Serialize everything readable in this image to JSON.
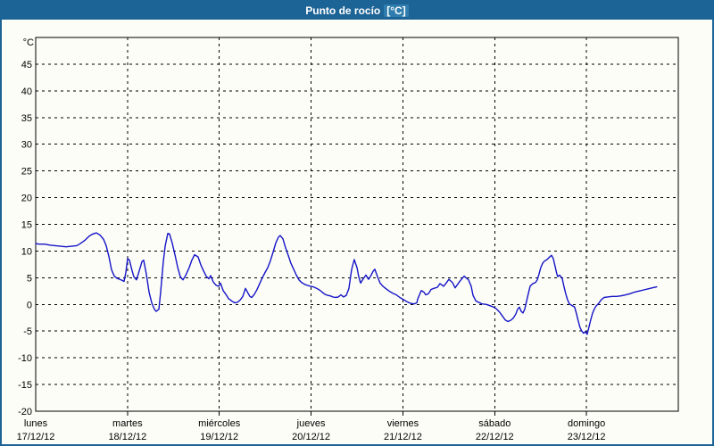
{
  "window": {
    "title_main": "Punto de rocío",
    "title_unit": "[°C]"
  },
  "colors": {
    "frame": "#1d6496",
    "title_text": "#ffffff",
    "title_unit_bg": "#2f7dae",
    "background": "#fdfdf7",
    "plot_border": "#000000",
    "grid": "#000000",
    "label": "#000000",
    "line": "#1414c8"
  },
  "chart_data": {
    "type": "line",
    "title": "Punto de rocío [°C]",
    "xlabel": "",
    "ylabel": "°C",
    "ylim": [
      -20,
      50
    ],
    "yticks": [
      45,
      40,
      35,
      30,
      25,
      20,
      15,
      10,
      5,
      0,
      -5,
      -10,
      -15,
      -20
    ],
    "x_range_days": [
      0,
      7
    ],
    "grid": true,
    "legend": "none",
    "x_days": [
      {
        "weekday": "lunes",
        "date": "17/12/12"
      },
      {
        "weekday": "martes",
        "date": "18/12/12"
      },
      {
        "weekday": "miércoles",
        "date": "19/12/12"
      },
      {
        "weekday": "jueves",
        "date": "20/12/12"
      },
      {
        "weekday": "viernes",
        "date": "21/12/12"
      },
      {
        "weekday": "sábado",
        "date": "22/12/12"
      },
      {
        "weekday": "domingo",
        "date": "23/12/12"
      }
    ],
    "series": [
      {
        "name": "Punto de rocío",
        "color": "#1414c8",
        "points": [
          [
            0.0,
            11.4
          ],
          [
            0.039,
            11.3
          ],
          [
            0.097,
            11.3
          ],
          [
            0.156,
            11.1
          ],
          [
            0.214,
            11.0
          ],
          [
            0.272,
            10.9
          ],
          [
            0.331,
            10.8
          ],
          [
            0.389,
            10.9
          ],
          [
            0.447,
            11.0
          ],
          [
            0.486,
            11.4
          ],
          [
            0.535,
            12.0
          ],
          [
            0.583,
            12.8
          ],
          [
            0.622,
            13.2
          ],
          [
            0.661,
            13.4
          ],
          [
            0.7,
            13.0
          ],
          [
            0.739,
            12.2
          ],
          [
            0.768,
            11.0
          ],
          [
            0.797,
            9.0
          ],
          [
            0.826,
            6.5
          ],
          [
            0.856,
            5.3
          ],
          [
            0.885,
            4.9
          ],
          [
            0.914,
            4.7
          ],
          [
            0.943,
            4.5
          ],
          [
            0.962,
            4.3
          ],
          [
            0.982,
            6.0
          ],
          [
            1.001,
            8.6
          ],
          [
            1.021,
            8.3
          ],
          [
            1.05,
            6.3
          ],
          [
            1.069,
            5.2
          ],
          [
            1.098,
            4.6
          ],
          [
            1.128,
            6.3
          ],
          [
            1.157,
            8.0
          ],
          [
            1.176,
            8.3
          ],
          [
            1.205,
            5.7
          ],
          [
            1.235,
            2.3
          ],
          [
            1.264,
            0.3
          ],
          [
            1.293,
            -0.9
          ],
          [
            1.312,
            -1.3
          ],
          [
            1.342,
            -0.9
          ],
          [
            1.361,
            2.3
          ],
          [
            1.39,
            8.0
          ],
          [
            1.41,
            10.9
          ],
          [
            1.439,
            13.3
          ],
          [
            1.458,
            13.2
          ],
          [
            1.487,
            11.5
          ],
          [
            1.517,
            9.3
          ],
          [
            1.546,
            7.0
          ],
          [
            1.575,
            5.2
          ],
          [
            1.604,
            4.6
          ],
          [
            1.633,
            5.4
          ],
          [
            1.672,
            6.9
          ],
          [
            1.701,
            8.3
          ],
          [
            1.731,
            9.3
          ],
          [
            1.769,
            8.9
          ],
          [
            1.799,
            7.4
          ],
          [
            1.828,
            6.3
          ],
          [
            1.857,
            5.3
          ],
          [
            1.886,
            4.8
          ],
          [
            1.906,
            5.4
          ],
          [
            1.935,
            4.2
          ],
          [
            1.964,
            3.6
          ],
          [
            1.993,
            3.4
          ],
          [
            2.013,
            4.0
          ],
          [
            2.042,
            2.6
          ],
          [
            2.071,
            1.9
          ],
          [
            2.1,
            1.1
          ],
          [
            2.139,
            0.6
          ],
          [
            2.168,
            0.3
          ],
          [
            2.197,
            0.4
          ],
          [
            2.226,
            0.8
          ],
          [
            2.256,
            1.5
          ],
          [
            2.285,
            3.0
          ],
          [
            2.304,
            2.4
          ],
          [
            2.333,
            1.5
          ],
          [
            2.353,
            1.3
          ],
          [
            2.382,
            1.9
          ],
          [
            2.411,
            2.8
          ],
          [
            2.44,
            3.9
          ],
          [
            2.469,
            5.0
          ],
          [
            2.499,
            6.0
          ],
          [
            2.528,
            6.9
          ],
          [
            2.557,
            8.2
          ],
          [
            2.586,
            9.8
          ],
          [
            2.615,
            11.5
          ],
          [
            2.644,
            12.6
          ],
          [
            2.664,
            12.9
          ],
          [
            2.693,
            12.3
          ],
          [
            2.722,
            10.6
          ],
          [
            2.751,
            9.2
          ],
          [
            2.78,
            7.7
          ],
          [
            2.81,
            6.6
          ],
          [
            2.839,
            5.5
          ],
          [
            2.868,
            4.6
          ],
          [
            2.897,
            4.1
          ],
          [
            2.926,
            3.8
          ],
          [
            2.955,
            3.6
          ],
          [
            2.994,
            3.4
          ],
          [
            3.023,
            3.3
          ],
          [
            3.062,
            3.0
          ],
          [
            3.092,
            2.7
          ],
          [
            3.121,
            2.3
          ],
          [
            3.15,
            1.9
          ],
          [
            3.179,
            1.7
          ],
          [
            3.208,
            1.6
          ],
          [
            3.237,
            1.4
          ],
          [
            3.266,
            1.3
          ],
          [
            3.296,
            1.4
          ],
          [
            3.325,
            1.8
          ],
          [
            3.354,
            1.4
          ],
          [
            3.383,
            1.7
          ],
          [
            3.412,
            3.0
          ],
          [
            3.441,
            6.5
          ],
          [
            3.47,
            8.4
          ],
          [
            3.5,
            6.9
          ],
          [
            3.519,
            5.2
          ],
          [
            3.539,
            4.0
          ],
          [
            3.568,
            4.8
          ],
          [
            3.597,
            5.5
          ],
          [
            3.626,
            4.7
          ],
          [
            3.655,
            5.5
          ],
          [
            3.675,
            6.2
          ],
          [
            3.694,
            6.6
          ],
          [
            3.723,
            5.2
          ],
          [
            3.752,
            4.0
          ],
          [
            3.782,
            3.4
          ],
          [
            3.811,
            3.0
          ],
          [
            3.85,
            2.5
          ],
          [
            3.889,
            2.1
          ],
          [
            3.928,
            1.8
          ],
          [
            3.967,
            1.3
          ],
          [
            4.006,
            0.9
          ],
          [
            4.045,
            0.5
          ],
          [
            4.084,
            0.2
          ],
          [
            4.122,
            0.1
          ],
          [
            4.152,
            0.3
          ],
          [
            4.161,
            1.0
          ],
          [
            4.2,
            2.6
          ],
          [
            4.229,
            2.3
          ],
          [
            4.249,
            1.8
          ],
          [
            4.278,
            2.0
          ],
          [
            4.307,
            2.8
          ],
          [
            4.336,
            3.0
          ],
          [
            4.375,
            3.2
          ],
          [
            4.404,
            3.9
          ],
          [
            4.443,
            3.4
          ],
          [
            4.472,
            4.0
          ],
          [
            4.501,
            4.7
          ],
          [
            4.54,
            4.1
          ],
          [
            4.569,
            3.1
          ],
          [
            4.618,
            4.3
          ],
          [
            4.647,
            4.9
          ],
          [
            4.667,
            5.3
          ],
          [
            4.686,
            5.0
          ],
          [
            4.715,
            4.6
          ],
          [
            4.744,
            3.4
          ],
          [
            4.764,
            1.7
          ],
          [
            4.793,
            0.7
          ],
          [
            4.812,
            0.5
          ],
          [
            4.861,
            0.1
          ],
          [
            4.91,
            0.0
          ],
          [
            4.958,
            -0.3
          ],
          [
            4.987,
            -0.5
          ],
          [
            5.017,
            -0.8
          ],
          [
            5.056,
            -1.5
          ],
          [
            5.085,
            -2.2
          ],
          [
            5.114,
            -2.9
          ],
          [
            5.143,
            -3.2
          ],
          [
            5.172,
            -3.0
          ],
          [
            5.201,
            -2.6
          ],
          [
            5.23,
            -1.8
          ],
          [
            5.25,
            -0.9
          ],
          [
            5.269,
            -0.5
          ],
          [
            5.289,
            -1.3
          ],
          [
            5.308,
            -1.6
          ],
          [
            5.327,
            -0.9
          ],
          [
            5.347,
            0.6
          ],
          [
            5.366,
            2.0
          ],
          [
            5.386,
            3.4
          ],
          [
            5.415,
            3.9
          ],
          [
            5.444,
            4.1
          ],
          [
            5.464,
            4.6
          ],
          [
            5.483,
            5.7
          ],
          [
            5.502,
            6.9
          ],
          [
            5.522,
            7.7
          ],
          [
            5.541,
            8.1
          ],
          [
            5.57,
            8.4
          ],
          [
            5.599,
            8.9
          ],
          [
            5.619,
            9.2
          ],
          [
            5.638,
            8.6
          ],
          [
            5.657,
            7.2
          ],
          [
            5.677,
            5.7
          ],
          [
            5.687,
            5.2
          ],
          [
            5.706,
            5.5
          ],
          [
            5.735,
            4.9
          ],
          [
            5.754,
            3.4
          ],
          [
            5.774,
            2.0
          ],
          [
            5.793,
            0.9
          ],
          [
            5.813,
            0.1
          ],
          [
            5.842,
            -0.2
          ],
          [
            5.871,
            -0.5
          ],
          [
            5.89,
            -1.7
          ],
          [
            5.91,
            -3.1
          ],
          [
            5.929,
            -4.3
          ],
          [
            5.949,
            -5.0
          ],
          [
            5.968,
            -5.4
          ],
          [
            5.987,
            -5.1
          ],
          [
            6.007,
            -5.6
          ],
          [
            6.026,
            -4.3
          ],
          [
            6.046,
            -2.9
          ],
          [
            6.065,
            -1.7
          ],
          [
            6.084,
            -0.9
          ],
          [
            6.104,
            -0.3
          ],
          [
            6.133,
            0.2
          ],
          [
            6.162,
            0.9
          ],
          [
            6.191,
            1.3
          ],
          [
            6.23,
            1.4
          ],
          [
            6.279,
            1.5
          ],
          [
            6.327,
            1.5
          ],
          [
            6.376,
            1.6
          ],
          [
            6.425,
            1.8
          ],
          [
            6.473,
            2.0
          ],
          [
            6.522,
            2.3
          ],
          [
            6.571,
            2.5
          ],
          [
            6.619,
            2.7
          ],
          [
            6.668,
            2.9
          ],
          [
            6.717,
            3.1
          ],
          [
            6.765,
            3.3
          ]
        ]
      }
    ]
  }
}
